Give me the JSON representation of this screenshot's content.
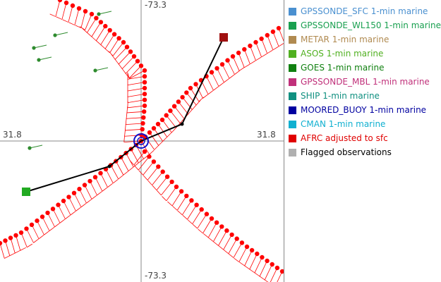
{
  "map": {
    "axis_labels": {
      "top": "-73.3",
      "bottom": "-73.3",
      "left": "31.8",
      "right": "31.8"
    },
    "colors": {
      "axis": "#888888",
      "obs_dot": "#ff0000",
      "wind_barb": "#ff0000",
      "track": "#000000",
      "station_green": "#2e8b2e",
      "marker_red": "#a01010",
      "marker_green": "#22aa22",
      "center_circle": "#1010cc"
    }
  },
  "legend": {
    "items": [
      {
        "label": "GPSSONDE_SFC 1-min marine",
        "color": "#4a90d0"
      },
      {
        "label": "GPSSONDE_WL150 1-min marine",
        "color": "#1aa050"
      },
      {
        "label": "METAR 1-min marine",
        "color": "#b08a50"
      },
      {
        "label": "ASOS 1-min marine",
        "color": "#50b020"
      },
      {
        "label": "GOES 1-min marine",
        "color": "#108010"
      },
      {
        "label": "GPSSONDE_MBL 1-min marine",
        "color": "#c0307a"
      },
      {
        "label": "SHIP 1-min marine",
        "color": "#109080"
      },
      {
        "label": "MOORED_BUOY 1-min marine",
        "color": "#0000a0"
      },
      {
        "label": "CMAN 1-min marine",
        "color": "#10b0d0"
      },
      {
        "label": "AFRC adjusted to sfc",
        "color": "#e00000"
      },
      {
        "label": "Flagged observations",
        "color": "#b0b0b0",
        "text_color": "#000000"
      }
    ]
  }
}
